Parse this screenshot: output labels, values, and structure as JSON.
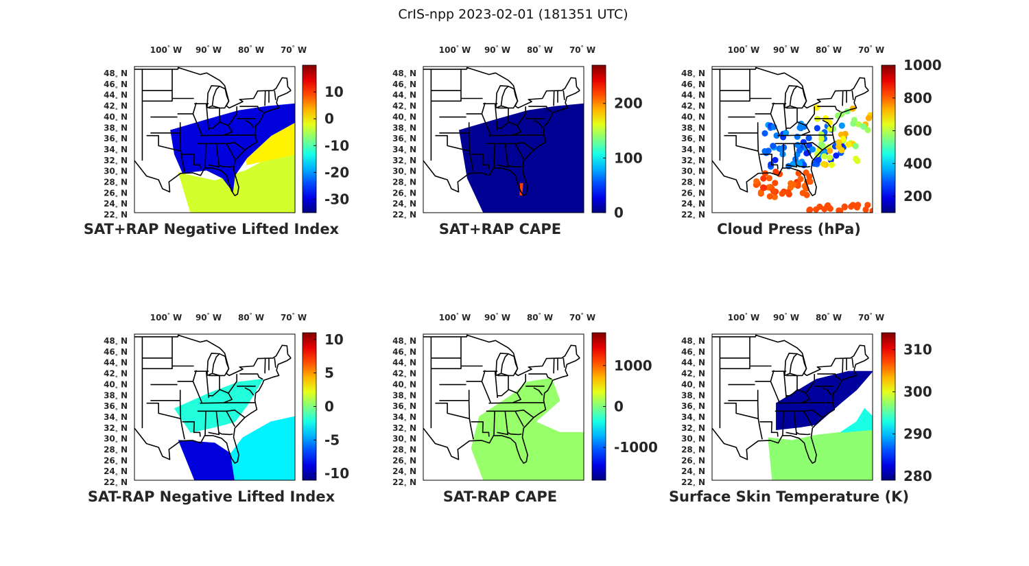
{
  "figure_title": "CrIS-npp 2023-02-01 (181351 UTC)",
  "lon_labels": [
    "100",
    "90",
    "80",
    "70"
  ],
  "lon_suffix": "W",
  "lat_labels": [
    "48",
    "46",
    "44",
    "42",
    "40",
    "38",
    "36",
    "34",
    "32",
    "30",
    "28",
    "26",
    "24",
    "22"
  ],
  "lat_suffix": "N",
  "degree_symbol": "°",
  "colormap": "jet",
  "chart_data": [
    {
      "type": "heatmap",
      "title": "SAT+RAP Negative Lifted Index",
      "colorbar": {
        "min": -35,
        "max": 20,
        "ticks": [
          -30,
          -20,
          -10,
          0,
          10
        ]
      },
      "field": "dense swath over southeastern US and Atlantic",
      "regions": [
        {
          "name": "land-swath",
          "value": -30
        },
        {
          "name": "ocean-south",
          "value": -3
        },
        {
          "name": "ocean-east",
          "value": 0
        }
      ]
    },
    {
      "type": "heatmap",
      "title": "SAT+RAP CAPE",
      "colorbar": {
        "min": 0,
        "max": 270,
        "ticks": [
          0,
          100,
          200
        ]
      },
      "field": "dense swath, mostly near zero",
      "regions": [
        {
          "name": "swath",
          "value": 5
        },
        {
          "name": "florida-streak",
          "value": 220
        }
      ]
    },
    {
      "type": "scatter",
      "title": "Cloud Press (hPa)",
      "colorbar": {
        "min": 100,
        "max": 1000,
        "ticks": [
          200,
          400,
          600,
          800,
          1000
        ]
      },
      "field": "scattered cloud retrievals",
      "regions": [
        {
          "name": "inland-high-clouds",
          "value": 300
        },
        {
          "name": "gulf-low-clouds",
          "value": 820
        },
        {
          "name": "atlantic-mid-clouds",
          "value": 650
        }
      ]
    },
    {
      "type": "heatmap",
      "title": "SAT-RAP Negative Lifted Index",
      "colorbar": {
        "min": -11,
        "max": 11,
        "ticks": [
          -10,
          -5,
          0,
          5,
          10
        ]
      },
      "field": "sparse swath difference",
      "regions": [
        {
          "name": "inland",
          "value": -2
        },
        {
          "name": "gulf",
          "value": -9
        },
        {
          "name": "atlantic",
          "value": -3
        }
      ]
    },
    {
      "type": "heatmap",
      "title": "SAT-RAP CAPE",
      "colorbar": {
        "min": -1800,
        "max": 1800,
        "ticks": [
          -1000,
          0,
          1000
        ]
      },
      "field": "near-zero difference swath",
      "regions": [
        {
          "name": "swath",
          "value": 80
        }
      ]
    },
    {
      "type": "heatmap",
      "title": "Surface Skin Temperature (K)",
      "colorbar": {
        "min": 279,
        "max": 314,
        "ticks": [
          280,
          290,
          300,
          310
        ]
      },
      "field": "skin temperature swath",
      "regions": [
        {
          "name": "north-land",
          "value": 280
        },
        {
          "name": "gulf",
          "value": 297
        },
        {
          "name": "atlantic",
          "value": 293
        }
      ]
    }
  ]
}
